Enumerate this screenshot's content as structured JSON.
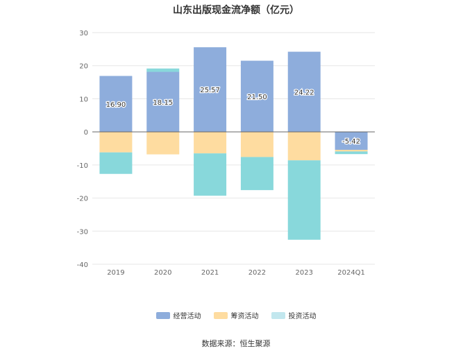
{
  "chart_data": {
    "type": "bar",
    "stacked": true,
    "title": "山东出版现金流净额（亿元）",
    "categories": [
      "2019",
      "2020",
      "2021",
      "2022",
      "2023",
      "2024Q1"
    ],
    "series": [
      {
        "name": "经营活动",
        "color": "#8eaddc",
        "values": [
          16.9,
          18.15,
          25.57,
          21.5,
          24.22,
          -5.42
        ],
        "labels": [
          "16.90",
          "18.15",
          "25.57",
          "21.50",
          "24.22",
          "-5.42"
        ]
      },
      {
        "name": "筹资活动",
        "color": "#fedca0",
        "values": [
          -6.2,
          -6.8,
          -6.5,
          -7.6,
          -8.6,
          -0.5
        ]
      },
      {
        "name": "投资活动",
        "color": "#88d8db",
        "values": [
          -6.5,
          1.0,
          -12.8,
          -10.0,
          -24.0,
          -0.8
        ]
      }
    ],
    "ylim": [
      -40,
      30
    ],
    "yticks": [
      30,
      20,
      10,
      0,
      -10,
      -20,
      -30,
      -40
    ],
    "grid": true,
    "legend_position": "bottom",
    "legend_colors": [
      "#8eaddc",
      "#fedca0",
      "#c2e7ee"
    ],
    "source": "数据来源：恒生聚源"
  }
}
